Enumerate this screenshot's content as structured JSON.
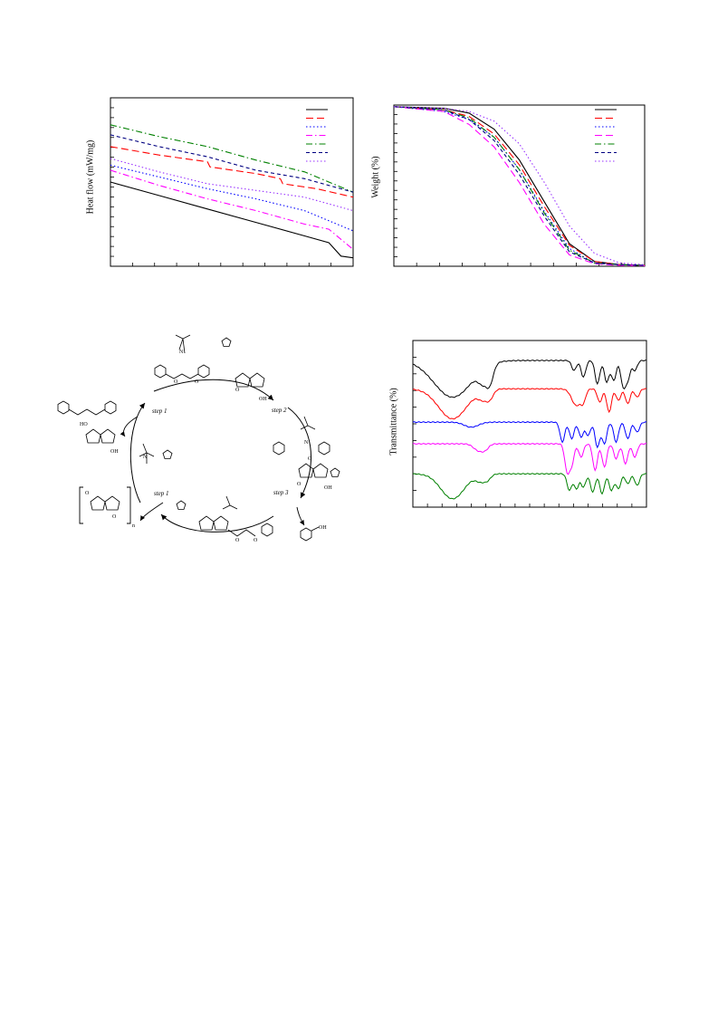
{
  "chart_data": [
    {
      "type": "line",
      "ylabel": "Heat flow (mW/mg)",
      "xlim": [
        0,
        100
      ],
      "ylim": [
        0,
        100
      ],
      "grid": false,
      "legend": "top-right",
      "series": [
        {
          "color": "#000000",
          "dash": "solid",
          "x": [
            0,
            20,
            40,
            60,
            80,
            90,
            95,
            100
          ],
          "y": [
            50,
            42,
            34,
            26,
            18,
            14,
            6,
            5
          ]
        },
        {
          "color": "#ff0000",
          "dash": "long",
          "x": [
            0,
            20,
            40,
            41,
            60,
            70,
            71,
            85,
            100
          ],
          "y": [
            71,
            66,
            62,
            59,
            55,
            52,
            49,
            46,
            41
          ]
        },
        {
          "color": "#0000ff",
          "dash": "dot",
          "x": [
            0,
            20,
            40,
            60,
            80,
            100
          ],
          "y": [
            60,
            53,
            46,
            40,
            33,
            21
          ]
        },
        {
          "color": "#ff00ff",
          "dash": "dashdot",
          "x": [
            0,
            20,
            40,
            60,
            80,
            90,
            100
          ],
          "y": [
            57,
            48,
            40,
            33,
            25,
            22,
            10
          ]
        },
        {
          "color": "#008000",
          "dash": "dashdot",
          "x": [
            0,
            20,
            40,
            60,
            80,
            100
          ],
          "y": [
            84,
            77,
            71,
            63,
            56,
            44
          ]
        },
        {
          "color": "#000080",
          "dash": "short",
          "x": [
            0,
            20,
            40,
            60,
            80,
            100
          ],
          "y": [
            78,
            71,
            65,
            57,
            52,
            44
          ]
        },
        {
          "color": "#9933ff",
          "dash": "dot",
          "x": [
            0,
            20,
            40,
            60,
            80,
            100
          ],
          "y": [
            64,
            56,
            49,
            45,
            41,
            33
          ]
        }
      ]
    },
    {
      "type": "line",
      "ylabel": "Weight (%)",
      "xlim": [
        0,
        100
      ],
      "ylim": [
        0,
        100
      ],
      "grid": false,
      "legend": "top-right",
      "series": [
        {
          "color": "#000000",
          "dash": "solid",
          "x": [
            0,
            20,
            30,
            40,
            50,
            60,
            70,
            80,
            90,
            100
          ],
          "y": [
            99,
            98,
            95,
            85,
            66,
            40,
            14,
            3,
            1,
            0.5
          ]
        },
        {
          "color": "#ff0000",
          "dash": "long",
          "x": [
            0,
            20,
            30,
            40,
            50,
            60,
            70,
            80,
            90,
            100
          ],
          "y": [
            99,
            97,
            93,
            82,
            63,
            37,
            13,
            3,
            1,
            0.5
          ]
        },
        {
          "color": "#0000ff",
          "dash": "dot",
          "x": [
            0,
            20,
            30,
            40,
            50,
            60,
            70,
            80,
            90,
            100
          ],
          "y": [
            99,
            96,
            91,
            80,
            60,
            34,
            11,
            2,
            1,
            0.5
          ]
        },
        {
          "color": "#ff00ff",
          "dash": "long",
          "x": [
            0,
            20,
            30,
            40,
            50,
            60,
            70,
            80,
            90,
            100
          ],
          "y": [
            99,
            96,
            88,
            74,
            52,
            26,
            7,
            1.5,
            0.5,
            0.3
          ]
        },
        {
          "color": "#008000",
          "dash": "dashdot",
          "x": [
            0,
            20,
            30,
            40,
            50,
            60,
            70,
            80,
            90,
            100
          ],
          "y": [
            99,
            97,
            92,
            80,
            60,
            33,
            10,
            2,
            1,
            0.5
          ]
        },
        {
          "color": "#000080",
          "dash": "short",
          "x": [
            0,
            20,
            30,
            40,
            50,
            60,
            70,
            80,
            90,
            100
          ],
          "y": [
            99,
            97,
            91,
            78,
            57,
            31,
            9,
            2,
            1,
            0.5
          ]
        },
        {
          "color": "#9933ff",
          "dash": "dot",
          "x": [
            0,
            20,
            30,
            40,
            50,
            60,
            70,
            80,
            90,
            100
          ],
          "y": [
            99,
            98,
            96,
            90,
            76,
            52,
            25,
            8,
            2,
            1
          ]
        }
      ]
    },
    {
      "type": "line",
      "ylabel": "Transmittance (%)",
      "xlim": [
        0,
        100
      ],
      "ylim": [
        0,
        100
      ],
      "grid": false,
      "series": [
        {
          "color": "#000000",
          "offset": 88,
          "dips": [
            [
              17,
              22,
              8
            ],
            [
              30,
              8,
              2
            ],
            [
              33,
              10,
              1.5
            ],
            [
              69,
              6,
              1
            ],
            [
              73,
              10,
              1
            ],
            [
              79,
              14,
              1
            ],
            [
              83,
              13,
              1
            ],
            [
              86,
              12,
              1
            ],
            [
              90,
              15,
              1
            ],
            [
              92,
              11,
              1
            ],
            [
              95,
              6,
              1
            ]
          ]
        },
        {
          "color": "#ff0000",
          "offset": 71,
          "dips": [
            [
              17,
              18,
              6
            ],
            [
              30,
              5,
              2
            ],
            [
              33,
              5,
              1.5
            ],
            [
              70,
              10,
              2
            ],
            [
              73,
              6,
              1
            ],
            [
              80,
              8,
              1
            ],
            [
              84,
              14,
              1
            ],
            [
              88,
              7,
              1
            ],
            [
              92,
              9,
              1
            ],
            [
              96,
              5,
              1
            ]
          ]
        },
        {
          "color": "#0000ff",
          "offset": 51,
          "dips": [
            [
              25,
              3,
              3
            ],
            [
              64,
              12,
              1
            ],
            [
              68,
              10,
              1
            ],
            [
              72,
              9,
              1
            ],
            [
              75,
              8,
              1
            ],
            [
              79,
              15,
              1
            ],
            [
              82,
              13,
              1
            ],
            [
              87,
              12,
              1
            ],
            [
              92,
              10,
              1
            ],
            [
              96,
              6,
              1
            ]
          ]
        },
        {
          "color": "#ff00ff",
          "offset": 38,
          "dips": [
            [
              28,
              4,
              2
            ],
            [
              31,
              3,
              1.5
            ],
            [
              66,
              16,
              1
            ],
            [
              68,
              12,
              1
            ],
            [
              72,
              8,
              1
            ],
            [
              78,
              16,
              1
            ],
            [
              82,
              14,
              1
            ],
            [
              87,
              9,
              1
            ],
            [
              91,
              12,
              1
            ],
            [
              95,
              8,
              1
            ]
          ]
        },
        {
          "color": "#008000",
          "offset": 20,
          "dips": [
            [
              17,
              15,
              5
            ],
            [
              29,
              4,
              2
            ],
            [
              32,
              3,
              1.5
            ],
            [
              67,
              10,
              1
            ],
            [
              70,
              9,
              1
            ],
            [
              73,
              8,
              1
            ],
            [
              77,
              11,
              1
            ],
            [
              81,
              12,
              1
            ],
            [
              85,
              10,
              1
            ],
            [
              88,
              9,
              1
            ],
            [
              92,
              6,
              1
            ],
            [
              96,
              7,
              1
            ]
          ]
        }
      ]
    }
  ],
  "scheme": {
    "labels": [
      "step 1",
      "step 2",
      "step 3",
      "step 1"
    ],
    "atoms": [
      "HO",
      "OH",
      "N",
      "O",
      "O",
      "O",
      "OH",
      "N",
      "O",
      "O",
      "OH",
      "O",
      "O",
      "N",
      "O",
      "O",
      "OH",
      "n"
    ]
  }
}
